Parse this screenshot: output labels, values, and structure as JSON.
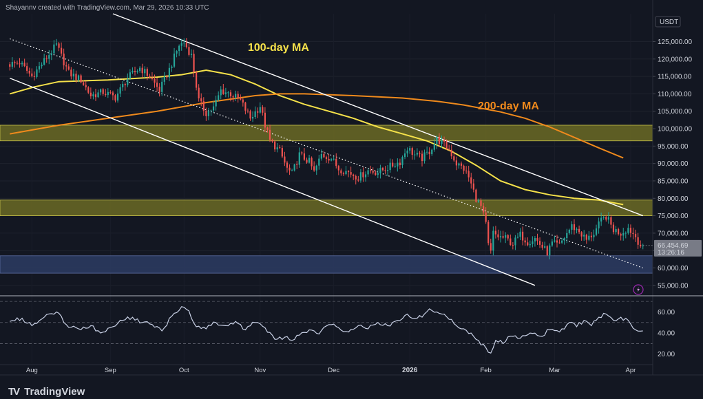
{
  "credit": "Shayannv created with TradingView.com, Mar 29, 2026 10:33 UTC",
  "brand": "TradingView",
  "currency": "USDT",
  "colors": {
    "background": "#131722",
    "up": "#26a69a",
    "down": "#ef5350",
    "ma100": "#f5e14a",
    "ma200": "#f08a1c",
    "resistance_zone": "#6b6a24",
    "support_zone": "#2d3c63",
    "rsi": "#c9d1e6",
    "channel": "#ffffff"
  },
  "icons": {
    "alert": "lightning-icon"
  },
  "chart_data": [
    {
      "type": "candlestick",
      "ylim": [
        52000,
        133000
      ],
      "y_ticks": [
        "125,000.00",
        "120,000.00",
        "115,000.00",
        "110,000.00",
        "105,000.00",
        "100,000.00",
        "95,000.00",
        "90,000.00",
        "85,000.00",
        "80,000.00",
        "75,000.00",
        "70,000.00",
        "65,000.00",
        "60,000.00",
        "55,000.00"
      ],
      "y_tick_values": [
        125000,
        120000,
        115000,
        110000,
        105000,
        100000,
        95000,
        90000,
        85000,
        80000,
        75000,
        70000,
        65000,
        60000,
        55000
      ],
      "x_ticks": [
        "Aug",
        "Sep",
        "Oct",
        "Nov",
        "Dec",
        "2026",
        "Feb",
        "Mar",
        "Apr"
      ],
      "x_tick_days": [
        9,
        41,
        71,
        102,
        132,
        163,
        194,
        222,
        253
      ],
      "price_label": "66,454.69",
      "countdown": "13:26:16",
      "last_price": 66454.69,
      "annotations": [
        {
          "text": "100-day MA",
          "color": "#f5e14a"
        },
        {
          "text": "200-day MA",
          "color": "#f08a1c"
        }
      ],
      "zones": [
        {
          "from": 96500,
          "to": 101000,
          "kind": "resistance"
        },
        {
          "from": 75000,
          "to": 79500,
          "kind": "resistance"
        },
        {
          "from": 58500,
          "to": 63500,
          "kind": "support"
        }
      ],
      "price_path": [
        [
          0,
          118500
        ],
        [
          4,
          119000
        ],
        [
          9,
          115000
        ],
        [
          14,
          119500
        ],
        [
          19,
          124000
        ],
        [
          24,
          116000
        ],
        [
          29,
          114000
        ],
        [
          33,
          109500
        ],
        [
          38,
          110500
        ],
        [
          43,
          109000
        ],
        [
          48,
          114500
        ],
        [
          53,
          117500
        ],
        [
          57,
          115000
        ],
        [
          61,
          111000
        ],
        [
          65,
          117000
        ],
        [
          69,
          124000
        ],
        [
          71,
          124800
        ],
        [
          74,
          121000
        ],
        [
          77,
          108000
        ],
        [
          80,
          104500
        ],
        [
          83,
          106000
        ],
        [
          86,
          111000
        ],
        [
          90,
          110000
        ],
        [
          94,
          108000
        ],
        [
          98,
          103000
        ],
        [
          102,
          106500
        ],
        [
          104,
          101000
        ],
        [
          106,
          96500
        ],
        [
          110,
          93500
        ],
        [
          113,
          88500
        ],
        [
          115,
          87000
        ],
        [
          118,
          92500
        ],
        [
          122,
          90500
        ],
        [
          124,
          87500
        ],
        [
          127,
          92500
        ],
        [
          131,
          91500
        ],
        [
          134,
          88500
        ],
        [
          138,
          87500
        ],
        [
          142,
          86000
        ],
        [
          146,
          88000
        ],
        [
          150,
          87500
        ],
        [
          153,
          88500
        ],
        [
          156,
          89500
        ],
        [
          159,
          90500
        ],
        [
          162,
          94500
        ],
        [
          165,
          92500
        ],
        [
          168,
          91500
        ],
        [
          171,
          93500
        ],
        [
          174,
          97000
        ],
        [
          176,
          96000
        ],
        [
          179,
          94000
        ],
        [
          182,
          90000
        ],
        [
          185,
          88500
        ],
        [
          187,
          86000
        ],
        [
          190,
          80000
        ],
        [
          192,
          77500
        ],
        [
          194,
          72500
        ],
        [
          195,
          66500
        ],
        [
          196,
          64500
        ],
        [
          197,
          70000
        ],
        [
          199,
          69000
        ],
        [
          202,
          68500
        ],
        [
          205,
          67000
        ],
        [
          208,
          69500
        ],
        [
          211,
          67500
        ],
        [
          214,
          68500
        ],
        [
          217,
          66000
        ],
        [
          219,
          64500
        ],
        [
          221,
          67000
        ],
        [
          224,
          66500
        ],
        [
          227,
          70000
        ],
        [
          229,
          72000
        ],
        [
          232,
          70500
        ],
        [
          235,
          68000
        ],
        [
          238,
          70000
        ],
        [
          241,
          73500
        ],
        [
          243,
          74800
        ],
        [
          246,
          71000
        ],
        [
          249,
          70000
        ],
        [
          252,
          71500
        ],
        [
          255,
          69000
        ],
        [
          257,
          66500
        ],
        [
          258,
          66454.69
        ]
      ],
      "moving_averages": [
        {
          "name": "100-day MA",
          "points": [
            [
              0,
              110000
            ],
            [
              10,
              112000
            ],
            [
              20,
              113500
            ],
            [
              40,
              114000
            ],
            [
              60,
              114800
            ],
            [
              70,
              115500
            ],
            [
              80,
              116800
            ],
            [
              90,
              115500
            ],
            [
              100,
              112800
            ],
            [
              110,
              109500
            ],
            [
              120,
              107000
            ],
            [
              130,
              105000
            ],
            [
              140,
              103000
            ],
            [
              150,
              100500
            ],
            [
              160,
              98500
            ],
            [
              170,
              96500
            ],
            [
              180,
              93500
            ],
            [
              190,
              89500
            ],
            [
              200,
              85000
            ],
            [
              210,
              82500
            ],
            [
              220,
              81000
            ],
            [
              230,
              80000
            ],
            [
              240,
              79500
            ],
            [
              250,
              78200
            ]
          ]
        },
        {
          "name": "200-day MA",
          "points": [
            [
              0,
              98500
            ],
            [
              20,
              101000
            ],
            [
              40,
              103000
            ],
            [
              60,
              105000
            ],
            [
              80,
              107500
            ],
            [
              100,
              109500
            ],
            [
              110,
              110000
            ],
            [
              120,
              110000
            ],
            [
              140,
              109500
            ],
            [
              160,
              108800
            ],
            [
              175,
              107800
            ],
            [
              185,
              106800
            ],
            [
              200,
              104800
            ],
            [
              210,
              103000
            ],
            [
              220,
              100500
            ],
            [
              230,
              97500
            ],
            [
              240,
              94500
            ],
            [
              250,
              91600
            ]
          ]
        }
      ],
      "trendlines": [
        {
          "style": "solid",
          "points": [
            [
              42,
              133000
            ],
            [
              258,
              75000
            ]
          ]
        },
        {
          "style": "solid",
          "points": [
            [
              0,
              114500
            ],
            [
              214,
              55000
            ]
          ]
        },
        {
          "style": "dotted",
          "points": [
            [
              0,
              125800
            ],
            [
              258,
              60000
            ]
          ]
        }
      ]
    },
    {
      "type": "line",
      "name": "RSI",
      "ylim": [
        12,
        74
      ],
      "y_ticks": [
        "60.00",
        "40.00",
        "20.00"
      ],
      "y_tick_values": [
        60,
        40,
        20
      ],
      "bands": [
        70,
        50,
        30
      ],
      "points": [
        [
          0,
          51
        ],
        [
          5,
          54
        ],
        [
          9,
          47
        ],
        [
          14,
          55
        ],
        [
          19,
          60
        ],
        [
          23,
          48
        ],
        [
          28,
          44
        ],
        [
          33,
          47
        ],
        [
          37,
          40
        ],
        [
          42,
          46
        ],
        [
          46,
          52
        ],
        [
          50,
          55
        ],
        [
          54,
          50
        ],
        [
          58,
          48
        ],
        [
          62,
          42
        ],
        [
          66,
          56
        ],
        [
          70,
          65
        ],
        [
          73,
          61
        ],
        [
          76,
          46
        ],
        [
          80,
          44
        ],
        [
          84,
          50
        ],
        [
          88,
          47
        ],
        [
          92,
          51
        ],
        [
          96,
          43
        ],
        [
          100,
          50
        ],
        [
          104,
          45
        ],
        [
          108,
          34
        ],
        [
          112,
          36
        ],
        [
          115,
          33
        ],
        [
          118,
          38
        ],
        [
          122,
          43
        ],
        [
          126,
          39
        ],
        [
          130,
          48
        ],
        [
          134,
          45
        ],
        [
          138,
          41
        ],
        [
          142,
          47
        ],
        [
          146,
          44
        ],
        [
          150,
          50
        ],
        [
          154,
          47
        ],
        [
          158,
          52
        ],
        [
          162,
          58
        ],
        [
          165,
          54
        ],
        [
          168,
          55
        ],
        [
          171,
          63
        ],
        [
          174,
          60
        ],
        [
          176,
          58
        ],
        [
          179,
          53
        ],
        [
          182,
          47
        ],
        [
          185,
          44
        ],
        [
          188,
          40
        ],
        [
          191,
          33
        ],
        [
          194,
          26
        ],
        [
          196,
          21
        ],
        [
          198,
          33
        ],
        [
          201,
          30
        ],
        [
          204,
          37
        ],
        [
          208,
          35
        ],
        [
          212,
          40
        ],
        [
          216,
          37
        ],
        [
          220,
          43
        ],
        [
          224,
          41
        ],
        [
          228,
          50
        ],
        [
          231,
          46
        ],
        [
          234,
          52
        ],
        [
          237,
          47
        ],
        [
          240,
          55
        ],
        [
          243,
          58
        ],
        [
          246,
          52
        ],
        [
          249,
          55
        ],
        [
          252,
          52
        ],
        [
          255,
          43
        ],
        [
          258,
          42
        ]
      ]
    }
  ]
}
